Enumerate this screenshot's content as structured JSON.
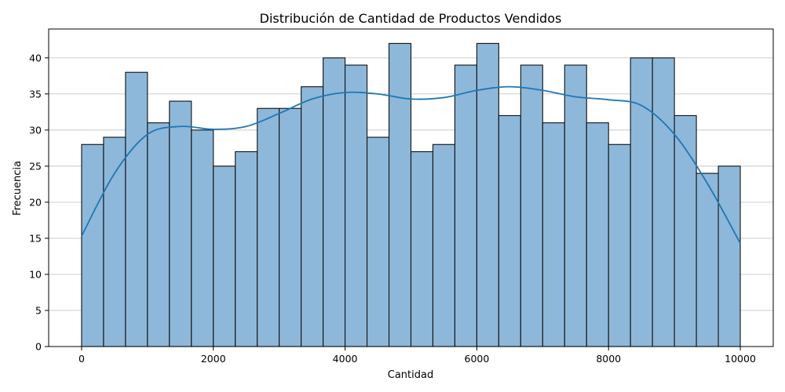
{
  "chart_data": {
    "type": "bar",
    "subtype": "histogram",
    "title": "Distribución de Cantidad de Productos Vendidos",
    "xlabel": "Cantidad",
    "ylabel": "Frecuencia",
    "xlim": [
      -500,
      10500
    ],
    "ylim": [
      0,
      44
    ],
    "xticks": [
      0,
      2000,
      4000,
      6000,
      8000,
      10000
    ],
    "yticks": [
      0,
      5,
      10,
      15,
      20,
      25,
      30,
      35,
      40
    ],
    "grid": "y-axis",
    "bin_edges": [
      0,
      333.3,
      666.7,
      1000,
      1333.3,
      1666.7,
      2000,
      2333.3,
      2666.7,
      3000,
      3333.3,
      3666.7,
      4000,
      4333.3,
      4666.7,
      5000,
      5333.3,
      5666.7,
      6000,
      6333.3,
      6666.7,
      7000,
      7333.3,
      7666.7,
      8000,
      8333.3,
      8666.7,
      9000,
      9333.3,
      9666.7,
      10000
    ],
    "values": [
      28,
      29,
      38,
      31,
      34,
      30,
      25,
      27,
      33,
      33,
      36,
      40,
      39,
      29,
      42,
      27,
      28,
      39,
      42,
      32,
      39,
      31,
      39,
      31,
      28,
      40,
      40,
      32,
      24,
      25
    ],
    "density_curve": {
      "x": [
        0,
        500,
        1000,
        1500,
        2000,
        2500,
        3000,
        3500,
        4000,
        4500,
        5000,
        5500,
        6000,
        6500,
        7000,
        7500,
        8000,
        8500,
        9000,
        9500,
        10000
      ],
      "y": [
        15.3,
        24,
        29.4,
        30.5,
        30.1,
        30.5,
        32.3,
        34.3,
        35.2,
        35,
        34.3,
        34.5,
        35.5,
        36,
        35.5,
        34.6,
        34.2,
        33.4,
        29.4,
        22.6,
        14.3
      ]
    },
    "colors": {
      "bar_fill": "#8db8da",
      "bar_edge": "#111111",
      "curve": "#1f77b4",
      "grid": "#c8c8c8"
    }
  }
}
